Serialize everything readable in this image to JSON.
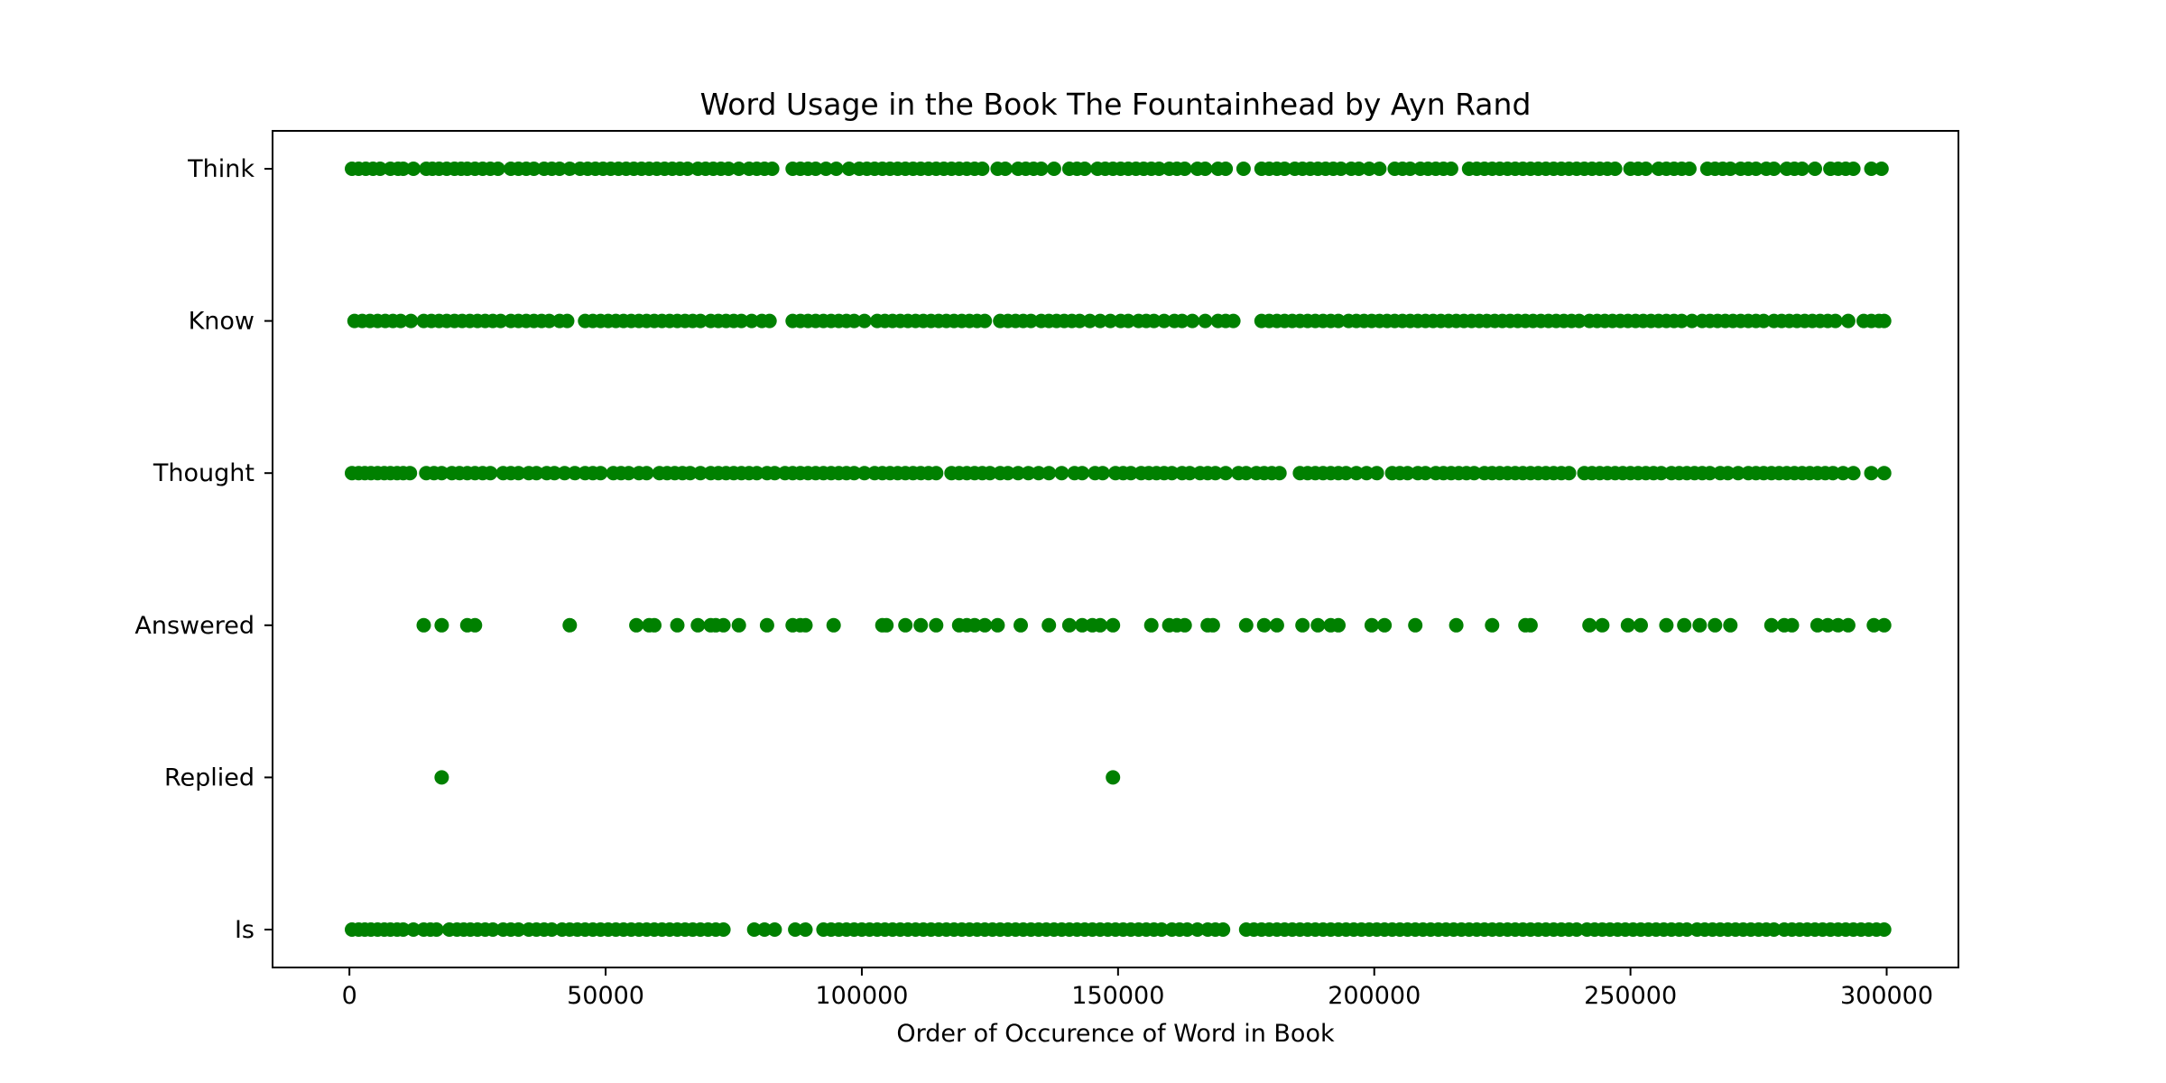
{
  "chart_data": {
    "type": "scatter",
    "title": "Word Usage in the Book The Fountainhead by Ayn Rand",
    "xlabel": "Order of Occurence of Word in Book",
    "ylabel": "",
    "x_ticks": [
      0,
      50000,
      100000,
      150000,
      200000,
      250000,
      300000
    ],
    "x_tick_labels": [
      "0",
      "50000",
      "100000",
      "150000",
      "200000",
      "250000",
      "300000"
    ],
    "xlim": [
      -15000,
      314000
    ],
    "categories": [
      "Is",
      "Replied",
      "Answered",
      "Thought",
      "Know",
      "Think"
    ],
    "grid": false,
    "legend": "none",
    "marker_color": "#008000",
    "series": [
      {
        "category": "Think",
        "x": [
          500,
          1800,
          3200,
          4600,
          6000,
          8000,
          9500,
          10500,
          12500,
          15000,
          16200,
          17500,
          19000,
          20500,
          21800,
          23000,
          24500,
          26000,
          27500,
          29000,
          31500,
          33000,
          34500,
          36000,
          38000,
          39500,
          41000,
          43000,
          45000,
          46500,
          48000,
          49500,
          51000,
          52500,
          54000,
          55500,
          57000,
          58500,
          60000,
          61500,
          63000,
          64500,
          66000,
          68000,
          69500,
          71000,
          72500,
          74000,
          76000,
          78000,
          79500,
          81000,
          82500,
          86500,
          88000,
          89500,
          91000,
          93000,
          95000,
          97500,
          99500,
          101000,
          102500,
          104000,
          105500,
          107000,
          108500,
          110000,
          111500,
          113000,
          114500,
          116000,
          117500,
          119000,
          120500,
          122000,
          123500,
          126500,
          128000,
          130500,
          132000,
          133500,
          135000,
          137500,
          140500,
          142000,
          143500,
          146000,
          147500,
          149000,
          150500,
          152000,
          153500,
          155000,
          156500,
          158000,
          160000,
          161500,
          163000,
          165500,
          167000,
          169500,
          171000,
          174500,
          178000,
          179500,
          181000,
          182500,
          184500,
          186000,
          187500,
          189000,
          190500,
          192000,
          193500,
          195500,
          197000,
          199000,
          201000,
          204000,
          205500,
          207000,
          209000,
          210500,
          212000,
          213500,
          215000,
          218500,
          220000,
          221500,
          223000,
          224500,
          226000,
          227500,
          229000,
          230500,
          232000,
          233500,
          235000,
          236500,
          238000,
          239500,
          241000,
          242500,
          244000,
          245500,
          247000,
          250000,
          251500,
          253000,
          255500,
          257000,
          258500,
          260000,
          261500,
          265000,
          266500,
          268000,
          269500,
          271500,
          273000,
          274500,
          276500,
          278000,
          280500,
          282000,
          283500,
          286000,
          289000,
          290500,
          292000,
          293500,
          297000,
          299000
        ]
      },
      {
        "category": "Know",
        "x": [
          1000,
          2500,
          4000,
          5500,
          7000,
          8500,
          10000,
          12000,
          14500,
          16000,
          17500,
          19000,
          20500,
          22000,
          23500,
          25000,
          26500,
          28000,
          29500,
          31500,
          33000,
          34500,
          36000,
          37500,
          39000,
          41000,
          42500,
          46000,
          47500,
          49000,
          50500,
          52000,
          53500,
          55000,
          56500,
          58000,
          59500,
          61000,
          62500,
          64000,
          65500,
          67000,
          68500,
          70500,
          72000,
          73500,
          75000,
          76500,
          78500,
          80500,
          82000,
          86500,
          88000,
          89500,
          91000,
          92500,
          94000,
          95500,
          97000,
          98500,
          100500,
          103000,
          104500,
          106000,
          107500,
          109000,
          110500,
          112000,
          113500,
          115000,
          116500,
          118000,
          119500,
          121000,
          122500,
          124000,
          127000,
          128500,
          130000,
          131500,
          133000,
          135000,
          136500,
          138000,
          139500,
          141000,
          142500,
          144500,
          146500,
          148500,
          150500,
          152000,
          154000,
          155500,
          157000,
          159000,
          161000,
          162500,
          164500,
          167000,
          169500,
          171000,
          172500,
          178000,
          179500,
          181000,
          182500,
          184000,
          185500,
          187000,
          188500,
          190000,
          191500,
          193000,
          195000,
          196500,
          198000,
          199500,
          201000,
          202500,
          204000,
          205500,
          207000,
          208500,
          210000,
          211500,
          213000,
          214500,
          216000,
          217500,
          219000,
          220500,
          222000,
          223500,
          225000,
          226500,
          228000,
          229500,
          231000,
          232500,
          234000,
          235500,
          237000,
          238500,
          240000,
          242000,
          243500,
          245000,
          246500,
          248000,
          249500,
          251000,
          252500,
          254000,
          255500,
          257000,
          258500,
          260000,
          262000,
          264000,
          265500,
          267000,
          268500,
          270000,
          271500,
          273000,
          274500,
          276000,
          278000,
          279500,
          281000,
          282500,
          284000,
          285500,
          287000,
          288500,
          290000,
          292500,
          295500,
          297000,
          298500,
          299500
        ]
      },
      {
        "category": "Thought",
        "x": [
          500,
          1800,
          3000,
          4200,
          5500,
          6800,
          8000,
          9300,
          10500,
          11800,
          15000,
          16500,
          18000,
          20000,
          21500,
          23000,
          24500,
          26000,
          27500,
          30000,
          31500,
          33000,
          35000,
          36500,
          38500,
          40000,
          42000,
          44000,
          46000,
          47500,
          49000,
          51500,
          53000,
          54500,
          56500,
          58000,
          60500,
          62000,
          63500,
          65000,
          66500,
          68500,
          70500,
          72000,
          73500,
          75000,
          76500,
          78000,
          79500,
          81500,
          83000,
          85000,
          86500,
          88000,
          89500,
          91000,
          92500,
          94000,
          95500,
          97000,
          98500,
          100500,
          102500,
          104000,
          105500,
          107000,
          108500,
          110000,
          111500,
          113000,
          114500,
          117500,
          119000,
          120500,
          122000,
          123500,
          125000,
          127000,
          128500,
          130500,
          132500,
          134500,
          136500,
          139000,
          141500,
          143000,
          145500,
          147000,
          149500,
          151000,
          152500,
          154500,
          156000,
          157500,
          159000,
          160500,
          162500,
          164000,
          166000,
          167500,
          169000,
          171000,
          173500,
          175000,
          177000,
          178500,
          180000,
          181500,
          185500,
          187000,
          188500,
          190000,
          191500,
          193000,
          194500,
          196500,
          198500,
          200500,
          203500,
          205000,
          206500,
          208500,
          210000,
          212000,
          213500,
          215000,
          216500,
          218000,
          219500,
          221500,
          223000,
          224500,
          226000,
          227500,
          229000,
          230500,
          232000,
          233500,
          235000,
          236500,
          238000,
          241000,
          242500,
          244000,
          245500,
          247000,
          248500,
          250000,
          251500,
          253000,
          254500,
          256000,
          258000,
          259500,
          261000,
          262500,
          264000,
          265500,
          267500,
          269000,
          271000,
          273000,
          274500,
          276000,
          277500,
          279000,
          280500,
          282000,
          283500,
          285000,
          286500,
          288000,
          289500,
          291500,
          293500,
          297000,
          299500
        ]
      },
      {
        "category": "Answered",
        "x": [
          14500,
          18000,
          23000,
          24500,
          43000,
          56000,
          58500,
          59500,
          64000,
          68000,
          70500,
          71500,
          73000,
          76000,
          81500,
          86500,
          88000,
          89000,
          94500,
          104000,
          104800,
          108500,
          111500,
          114500,
          119000,
          120500,
          122000,
          124000,
          126500,
          131000,
          136500,
          140500,
          143000,
          145000,
          146500,
          149000,
          156500,
          160000,
          161500,
          163000,
          167500,
          168500,
          175000,
          178500,
          181000,
          186000,
          189000,
          191500,
          193000,
          199500,
          202000,
          208000,
          216000,
          223000,
          229500,
          230500,
          242000,
          244500,
          249500,
          252000,
          257000,
          260500,
          263500,
          266500,
          269500,
          277500,
          280000,
          281500,
          286500,
          288500,
          290500,
          292500,
          297500,
          299500
        ]
      },
      {
        "category": "Replied",
        "x": [
          18000,
          149000
        ]
      },
      {
        "category": "Is",
        "x": [
          500,
          1800,
          3000,
          4200,
          5500,
          6800,
          8000,
          9300,
          10500,
          12500,
          14500,
          15800,
          17000,
          19500,
          21000,
          22300,
          23600,
          25000,
          26500,
          28000,
          30000,
          31500,
          33000,
          35000,
          36500,
          38000,
          39500,
          41500,
          43000,
          44500,
          46000,
          47500,
          49000,
          50500,
          52000,
          53500,
          55000,
          56500,
          58000,
          59500,
          61000,
          62500,
          64000,
          65500,
          67000,
          68500,
          70000,
          71500,
          73000,
          79000,
          81000,
          83000,
          87000,
          89000,
          92500,
          94000,
          95500,
          97000,
          98500,
          100000,
          101500,
          103000,
          104500,
          106000,
          107500,
          109000,
          110500,
          112000,
          113500,
          115000,
          116500,
          118000,
          119500,
          121000,
          122500,
          124000,
          125500,
          127000,
          128500,
          130000,
          131500,
          133000,
          134500,
          136000,
          137500,
          139000,
          140500,
          142000,
          143500,
          145000,
          146500,
          148000,
          149500,
          151000,
          152500,
          154000,
          155500,
          157000,
          158500,
          160500,
          162000,
          163500,
          165500,
          167500,
          169000,
          170500,
          175000,
          176500,
          178000,
          179500,
          181000,
          182500,
          184000,
          185500,
          187000,
          188500,
          190000,
          191500,
          193000,
          194500,
          196000,
          197500,
          199000,
          200500,
          202000,
          203500,
          205000,
          206500,
          208000,
          209500,
          211000,
          212500,
          214000,
          215500,
          217000,
          218500,
          220000,
          221500,
          223000,
          224500,
          226000,
          227500,
          229000,
          230500,
          232000,
          233500,
          235000,
          236500,
          238000,
          239500,
          241500,
          243000,
          244500,
          246000,
          247500,
          249000,
          250500,
          252000,
          253500,
          255000,
          256500,
          258000,
          259500,
          261000,
          263000,
          264500,
          266000,
          267500,
          269000,
          270500,
          272000,
          273500,
          275000,
          276500,
          278000,
          280000,
          281500,
          283000,
          284500,
          286000,
          287500,
          289000,
          290500,
          292000,
          293500,
          295000,
          296500,
          298000,
          299500
        ]
      }
    ]
  }
}
